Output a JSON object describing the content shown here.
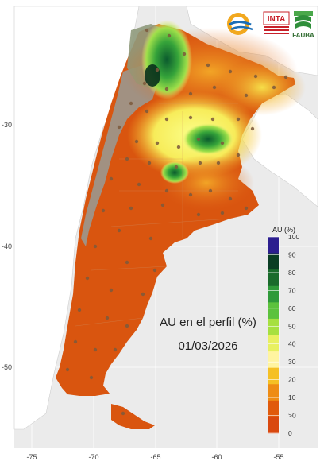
{
  "map": {
    "title_line1": "AU en el perfil (%)",
    "title_line2": "01/03/2026",
    "x_ticks": [
      "-75",
      "-70",
      "-65",
      "-60",
      "-55"
    ],
    "y_ticks": [
      "-30",
      "-40",
      "-50"
    ]
  },
  "legend": {
    "title": "AU (%)",
    "ticks": [
      "100",
      "90",
      "80",
      "70",
      "60",
      "50",
      "40",
      "30",
      "20",
      "10",
      ">0",
      "0"
    ],
    "colors": [
      "#2c1e8f",
      "#0a3d24",
      "#1a6b2c",
      "#2f9a3a",
      "#5cc23d",
      "#a6e040",
      "#e8f060",
      "#fff4a0",
      "#f5c024",
      "#ee8c14",
      "#e05a0c",
      "#d9480f"
    ]
  },
  "logos": {
    "inta": "INTA",
    "fauba": "FAUBA"
  },
  "colors": {
    "background": "#ebebeb",
    "grid": "#ffffff",
    "dry": "#d9550f",
    "no_data": "#9e9589",
    "neighbors": "#ffffff",
    "station": "#8b6b4a"
  }
}
